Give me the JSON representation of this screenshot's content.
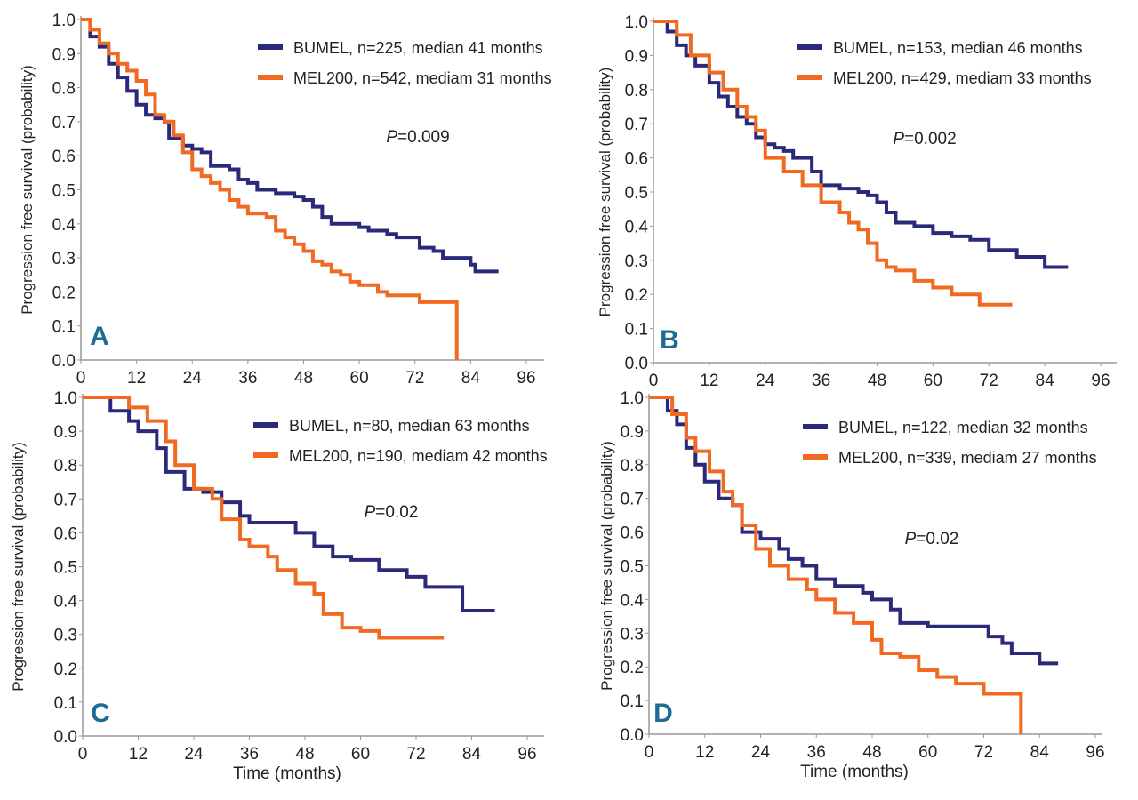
{
  "colors": {
    "bumel": "#2b2a7a",
    "mel200": "#f26a21",
    "panel_letter": "#1c6c93"
  },
  "chart_data": [
    {
      "type": "line",
      "panel": "A",
      "ylabel": "Progression free survival (probability)",
      "xlabel": "",
      "xlim": [
        0,
        96
      ],
      "ylim": [
        0,
        1
      ],
      "xticks": [
        "0",
        "12",
        "24",
        "36",
        "48",
        "60",
        "72",
        "84",
        "96"
      ],
      "yticks": [
        "0.0",
        "0.1",
        "0.2",
        "0.3",
        "0.4",
        "0.5",
        "0.6",
        "0.7",
        "0.8",
        "0.9",
        "1.0"
      ],
      "p_prefix": "P",
      "p_value": "=0.009",
      "series": [
        {
          "name": "BUMEL, n=225, median 41 months",
          "color": "#2b2a7a",
          "points": [
            [
              0,
              1
            ],
            [
              2,
              0.95
            ],
            [
              4,
              0.92
            ],
            [
              6,
              0.87
            ],
            [
              8,
              0.83
            ],
            [
              10,
              0.79
            ],
            [
              12,
              0.75
            ],
            [
              14,
              0.72
            ],
            [
              16,
              0.71
            ],
            [
              18,
              0.7
            ],
            [
              19,
              0.65
            ],
            [
              22,
              0.63
            ],
            [
              24,
              0.62
            ],
            [
              26,
              0.61
            ],
            [
              28,
              0.57
            ],
            [
              32,
              0.56
            ],
            [
              34,
              0.53
            ],
            [
              36,
              0.52
            ],
            [
              38,
              0.5
            ],
            [
              42,
              0.49
            ],
            [
              46,
              0.48
            ],
            [
              48,
              0.47
            ],
            [
              50,
              0.45
            ],
            [
              52,
              0.42
            ],
            [
              54,
              0.4
            ],
            [
              60,
              0.39
            ],
            [
              62,
              0.38
            ],
            [
              66,
              0.37
            ],
            [
              68,
              0.36
            ],
            [
              73,
              0.33
            ],
            [
              76,
              0.32
            ],
            [
              78,
              0.3
            ],
            [
              84,
              0.28
            ],
            [
              85,
              0.26
            ],
            [
              90,
              0.26
            ]
          ]
        },
        {
          "name": "MEL200, n=542, mediam 31 months",
          "color": "#f26a21",
          "points": [
            [
              0,
              1
            ],
            [
              2,
              0.97
            ],
            [
              4,
              0.93
            ],
            [
              6,
              0.9
            ],
            [
              8,
              0.87
            ],
            [
              10,
              0.85
            ],
            [
              12,
              0.82
            ],
            [
              14,
              0.78
            ],
            [
              16,
              0.72
            ],
            [
              18,
              0.7
            ],
            [
              20,
              0.66
            ],
            [
              22,
              0.61
            ],
            [
              24,
              0.56
            ],
            [
              26,
              0.54
            ],
            [
              28,
              0.52
            ],
            [
              30,
              0.5
            ],
            [
              32,
              0.47
            ],
            [
              34,
              0.45
            ],
            [
              36,
              0.43
            ],
            [
              40,
              0.42
            ],
            [
              42,
              0.38
            ],
            [
              44,
              0.36
            ],
            [
              46,
              0.34
            ],
            [
              48,
              0.32
            ],
            [
              50,
              0.29
            ],
            [
              52,
              0.28
            ],
            [
              54,
              0.26
            ],
            [
              56,
              0.25
            ],
            [
              58,
              0.23
            ],
            [
              60,
              0.22
            ],
            [
              64,
              0.2
            ],
            [
              66,
              0.19
            ],
            [
              73,
              0.17
            ],
            [
              81,
              0.17
            ],
            [
              81,
              0
            ]
          ]
        }
      ]
    },
    {
      "type": "line",
      "panel": "B",
      "ylabel": "Progression free survival (probability)",
      "xlabel": "",
      "xlim": [
        0,
        96
      ],
      "ylim": [
        0,
        1
      ],
      "xticks": [
        "0",
        "12",
        "24",
        "36",
        "48",
        "60",
        "72",
        "84",
        "96"
      ],
      "yticks": [
        "0.0",
        "0.1",
        "0.2",
        "0.3",
        "0.4",
        "0.5",
        "0.6",
        "0.7",
        "0.8",
        "0.9",
        "1.0"
      ],
      "p_prefix": "P",
      "p_value": "=0.002",
      "series": [
        {
          "name": "BUMEL, n=153, median 46 months",
          "color": "#2b2a7a",
          "points": [
            [
              0,
              1
            ],
            [
              3,
              0.97
            ],
            [
              5,
              0.93
            ],
            [
              7,
              0.9
            ],
            [
              9,
              0.87
            ],
            [
              12,
              0.82
            ],
            [
              14,
              0.78
            ],
            [
              16,
              0.75
            ],
            [
              18,
              0.72
            ],
            [
              20,
              0.7
            ],
            [
              22,
              0.66
            ],
            [
              24,
              0.64
            ],
            [
              26,
              0.63
            ],
            [
              28,
              0.62
            ],
            [
              30,
              0.6
            ],
            [
              34,
              0.56
            ],
            [
              36,
              0.52
            ],
            [
              40,
              0.51
            ],
            [
              44,
              0.5
            ],
            [
              46,
              0.49
            ],
            [
              48,
              0.47
            ],
            [
              50,
              0.44
            ],
            [
              52,
              0.41
            ],
            [
              56,
              0.4
            ],
            [
              60,
              0.38
            ],
            [
              64,
              0.37
            ],
            [
              68,
              0.36
            ],
            [
              72,
              0.33
            ],
            [
              78,
              0.31
            ],
            [
              84,
              0.28
            ],
            [
              89,
              0.28
            ]
          ]
        },
        {
          "name": "MEL200, n=429, mediam 33 months",
          "color": "#f26a21",
          "points": [
            [
              0,
              1
            ],
            [
              3,
              1
            ],
            [
              5,
              0.96
            ],
            [
              8,
              0.9
            ],
            [
              12,
              0.85
            ],
            [
              15,
              0.8
            ],
            [
              18,
              0.75
            ],
            [
              20,
              0.72
            ],
            [
              22,
              0.68
            ],
            [
              24,
              0.6
            ],
            [
              28,
              0.56
            ],
            [
              32,
              0.52
            ],
            [
              36,
              0.47
            ],
            [
              40,
              0.44
            ],
            [
              42,
              0.41
            ],
            [
              44,
              0.39
            ],
            [
              46,
              0.35
            ],
            [
              48,
              0.3
            ],
            [
              50,
              0.28
            ],
            [
              52,
              0.27
            ],
            [
              56,
              0.24
            ],
            [
              60,
              0.22
            ],
            [
              64,
              0.2
            ],
            [
              70,
              0.17
            ],
            [
              77,
              0.17
            ]
          ]
        }
      ]
    },
    {
      "type": "line",
      "panel": "C",
      "ylabel": "Progression free survival (probability)",
      "xlabel": "Time (months)",
      "xlim": [
        0,
        96
      ],
      "ylim": [
        0,
        1
      ],
      "xticks": [
        "0",
        "12",
        "24",
        "36",
        "48",
        "60",
        "72",
        "84",
        "96"
      ],
      "yticks": [
        "0.0",
        "0.1",
        "0.2",
        "0.3",
        "0.4",
        "0.5",
        "0.6",
        "0.7",
        "0.8",
        "0.9",
        "1.0"
      ],
      "p_prefix": "P",
      "p_value": "=0.02",
      "series": [
        {
          "name": "BUMEL, n=80, median 63 months",
          "color": "#2b2a7a",
          "points": [
            [
              0,
              1
            ],
            [
              4,
              1
            ],
            [
              6,
              0.96
            ],
            [
              10,
              0.93
            ],
            [
              12,
              0.9
            ],
            [
              16,
              0.85
            ],
            [
              18,
              0.78
            ],
            [
              22,
              0.73
            ],
            [
              26,
              0.72
            ],
            [
              30,
              0.69
            ],
            [
              34,
              0.65
            ],
            [
              36,
              0.63
            ],
            [
              44,
              0.63
            ],
            [
              46,
              0.6
            ],
            [
              50,
              0.56
            ],
            [
              54,
              0.53
            ],
            [
              58,
              0.52
            ],
            [
              64,
              0.49
            ],
            [
              70,
              0.47
            ],
            [
              74,
              0.44
            ],
            [
              82,
              0.44
            ],
            [
              82,
              0.37
            ],
            [
              89,
              0.37
            ]
          ]
        },
        {
          "name": "MEL200, n=190, mediam 42 months",
          "color": "#f26a21",
          "points": [
            [
              0,
              1
            ],
            [
              8,
              1
            ],
            [
              10,
              0.97
            ],
            [
              14,
              0.93
            ],
            [
              18,
              0.87
            ],
            [
              20,
              0.8
            ],
            [
              24,
              0.73
            ],
            [
              28,
              0.7
            ],
            [
              30,
              0.64
            ],
            [
              34,
              0.58
            ],
            [
              36,
              0.56
            ],
            [
              40,
              0.53
            ],
            [
              42,
              0.49
            ],
            [
              46,
              0.45
            ],
            [
              50,
              0.42
            ],
            [
              52,
              0.36
            ],
            [
              56,
              0.32
            ],
            [
              60,
              0.31
            ],
            [
              64,
              0.29
            ],
            [
              78,
              0.29
            ]
          ]
        }
      ]
    },
    {
      "type": "line",
      "panel": "D",
      "ylabel": "Progression free survival (probability)",
      "xlabel": "Time (months)",
      "xlim": [
        0,
        96
      ],
      "ylim": [
        0,
        1
      ],
      "xticks": [
        "0",
        "12",
        "24",
        "36",
        "48",
        "60",
        "72",
        "84",
        "96"
      ],
      "yticks": [
        "0.0",
        "0.1",
        "0.2",
        "0.3",
        "0.4",
        "0.5",
        "0.6",
        "0.7",
        "0.8",
        "0.9",
        "1.0"
      ],
      "p_prefix": "P",
      "p_value": "=0.02",
      "series": [
        {
          "name": "BUMEL, n=122, median 32 months",
          "color": "#2b2a7a",
          "points": [
            [
              0,
              1
            ],
            [
              2,
              1
            ],
            [
              4,
              0.96
            ],
            [
              6,
              0.92
            ],
            [
              8,
              0.85
            ],
            [
              10,
              0.8
            ],
            [
              12,
              0.75
            ],
            [
              15,
              0.7
            ],
            [
              18,
              0.68
            ],
            [
              20,
              0.6
            ],
            [
              24,
              0.58
            ],
            [
              28,
              0.55
            ],
            [
              30,
              0.52
            ],
            [
              33,
              0.5
            ],
            [
              36,
              0.46
            ],
            [
              40,
              0.44
            ],
            [
              46,
              0.42
            ],
            [
              48,
              0.4
            ],
            [
              52,
              0.37
            ],
            [
              54,
              0.33
            ],
            [
              60,
              0.32
            ],
            [
              72,
              0.32
            ],
            [
              73,
              0.29
            ],
            [
              76,
              0.27
            ],
            [
              78,
              0.24
            ],
            [
              84,
              0.21
            ],
            [
              88,
              0.21
            ]
          ]
        },
        {
          "name": "MEL200, n=339, mediam 27 months",
          "color": "#f26a21",
          "points": [
            [
              0,
              1
            ],
            [
              3,
              1
            ],
            [
              5,
              0.95
            ],
            [
              8,
              0.88
            ],
            [
              10,
              0.84
            ],
            [
              13,
              0.78
            ],
            [
              16,
              0.72
            ],
            [
              18,
              0.68
            ],
            [
              20,
              0.62
            ],
            [
              23,
              0.55
            ],
            [
              26,
              0.5
            ],
            [
              30,
              0.46
            ],
            [
              34,
              0.43
            ],
            [
              36,
              0.4
            ],
            [
              40,
              0.36
            ],
            [
              44,
              0.33
            ],
            [
              48,
              0.28
            ],
            [
              50,
              0.24
            ],
            [
              54,
              0.23
            ],
            [
              58,
              0.19
            ],
            [
              62,
              0.17
            ],
            [
              66,
              0.15
            ],
            [
              72,
              0.12
            ],
            [
              80,
              0.12
            ],
            [
              80,
              0
            ]
          ]
        }
      ]
    }
  ]
}
